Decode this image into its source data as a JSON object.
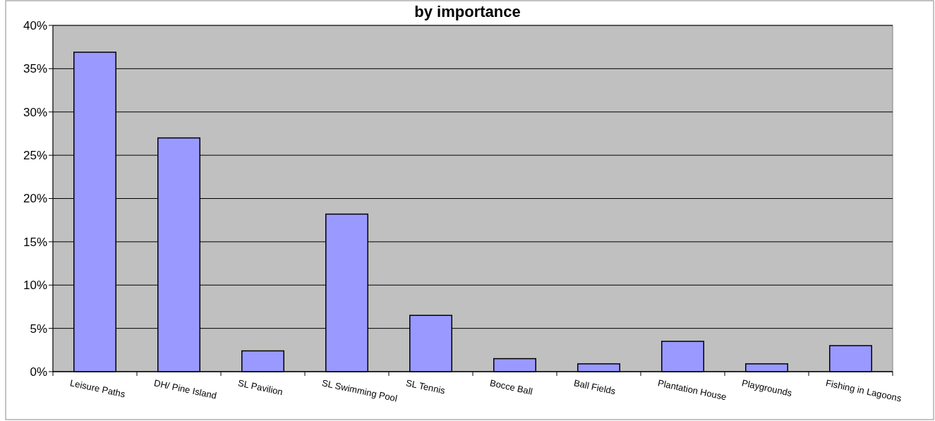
{
  "chart_data": {
    "type": "bar",
    "title": "by importance",
    "categories": [
      "Leisure Paths",
      "DH/ Pine Island",
      "SL Pavilion",
      "SL Swimming Pool",
      "SL Tennis",
      "Bocce Ball",
      "Ball Fields",
      "Plantation House",
      "Playgrounds",
      "Fishing in Lagoons"
    ],
    "values": [
      36.9,
      27.0,
      2.4,
      18.2,
      6.5,
      1.5,
      0.9,
      3.5,
      0.9,
      3.0
    ],
    "color": "#9999ff",
    "ylim": [
      0,
      40
    ],
    "yticks": [
      {
        "value": 0,
        "label": "0%"
      },
      {
        "value": 5,
        "label": "5%"
      },
      {
        "value": 10,
        "label": "10%"
      },
      {
        "value": 15,
        "label": "15%"
      },
      {
        "value": 20,
        "label": "20%"
      },
      {
        "value": 25,
        "label": "25%"
      },
      {
        "value": 30,
        "label": "30%"
      },
      {
        "value": 35,
        "label": "35%"
      },
      {
        "value": 40,
        "label": "40%"
      }
    ],
    "grid": "y"
  }
}
